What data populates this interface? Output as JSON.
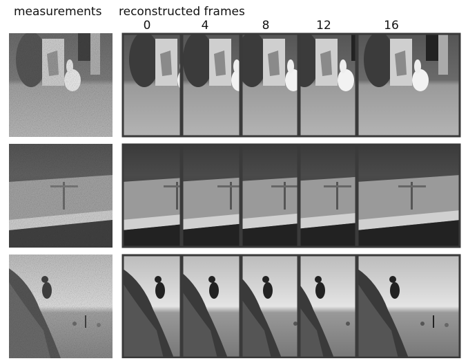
{
  "header": {
    "measurements": "measurements",
    "reconstructed": "reconstructed frames"
  },
  "frames": [
    0,
    4,
    8,
    12,
    16
  ]
}
